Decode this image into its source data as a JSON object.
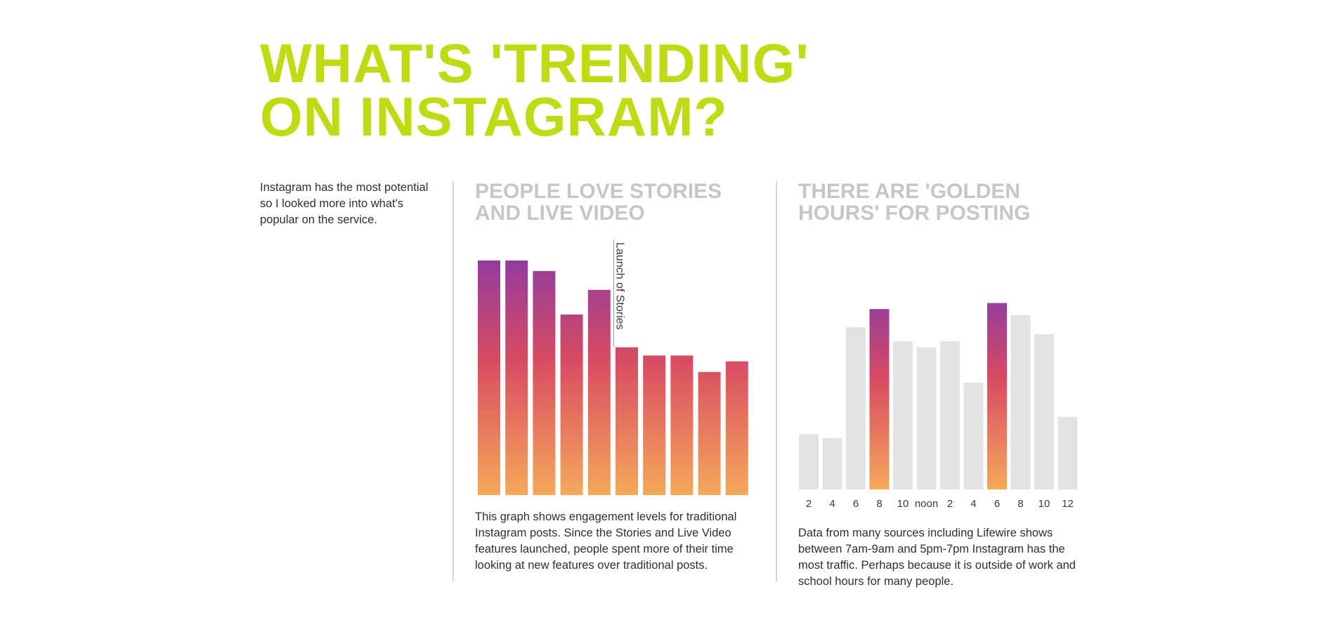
{
  "page": {
    "title_line1": "WHAT'S 'TRENDING'",
    "title_line2": "ON INSTAGRAM?",
    "intro": "Instagram has the most potential so I looked more into what's popular on the service."
  },
  "colors": {
    "title": "#bfdc12",
    "panel_title": "#c6c6c6",
    "gradient_top": "#923c9f",
    "gradient_mid": "#d84a62",
    "gradient_bottom": "#f6a85a",
    "muted_bar": "#e3e3e3"
  },
  "panels": {
    "stories": {
      "title_line1": "PEOPLE LOVE STORIES",
      "title_line2": "AND LIVE VIDEO",
      "caption": "This graph shows engagement levels for traditional Instagram posts. Since the Stories and Live Video features launched, people spent more of their time looking at new features over traditional posts."
    },
    "golden": {
      "title_line1": "THERE ARE 'GOLDEN",
      "title_line2": "HOURS' FOR POSTING",
      "caption": "Data from many sources including Lifewire shows between 7am-9am and 5pm-7pm Instagram has the most traffic. Perhaps because it is outside of work and school hours for many people."
    }
  },
  "chart_data": [
    {
      "type": "bar",
      "title": "PEOPLE LOVE STORIES AND LIVE VIDEO",
      "xlabel": "",
      "ylabel": "",
      "categories": [
        "",
        "",
        "",
        "",
        "",
        "",
        "",
        "",
        "",
        ""
      ],
      "values": [
        100,
        100,
        95.5,
        77,
        87.5,
        63,
        59.5,
        59.5,
        52.5,
        57
      ],
      "ylim": [
        0,
        100
      ],
      "grid": false,
      "annotations": [
        {
          "text": "Launch of Stories",
          "after_index": 4
        }
      ]
    },
    {
      "type": "bar",
      "title": "THERE ARE 'GOLDEN HOURS' FOR POSTING",
      "xlabel": "",
      "ylabel": "",
      "categories": [
        "2",
        "4",
        "6",
        "8",
        "10",
        "noon",
        "2",
        "4",
        "6",
        "8",
        "10",
        "12"
      ],
      "values": [
        27.5,
        25.5,
        80.5,
        89.5,
        73.5,
        70.5,
        73.5,
        53,
        92.5,
        86.5,
        77,
        36
      ],
      "highlighted": [
        false,
        false,
        false,
        true,
        false,
        false,
        false,
        false,
        true,
        false,
        false,
        false
      ],
      "ylim": [
        0,
        100
      ],
      "grid": false
    }
  ]
}
